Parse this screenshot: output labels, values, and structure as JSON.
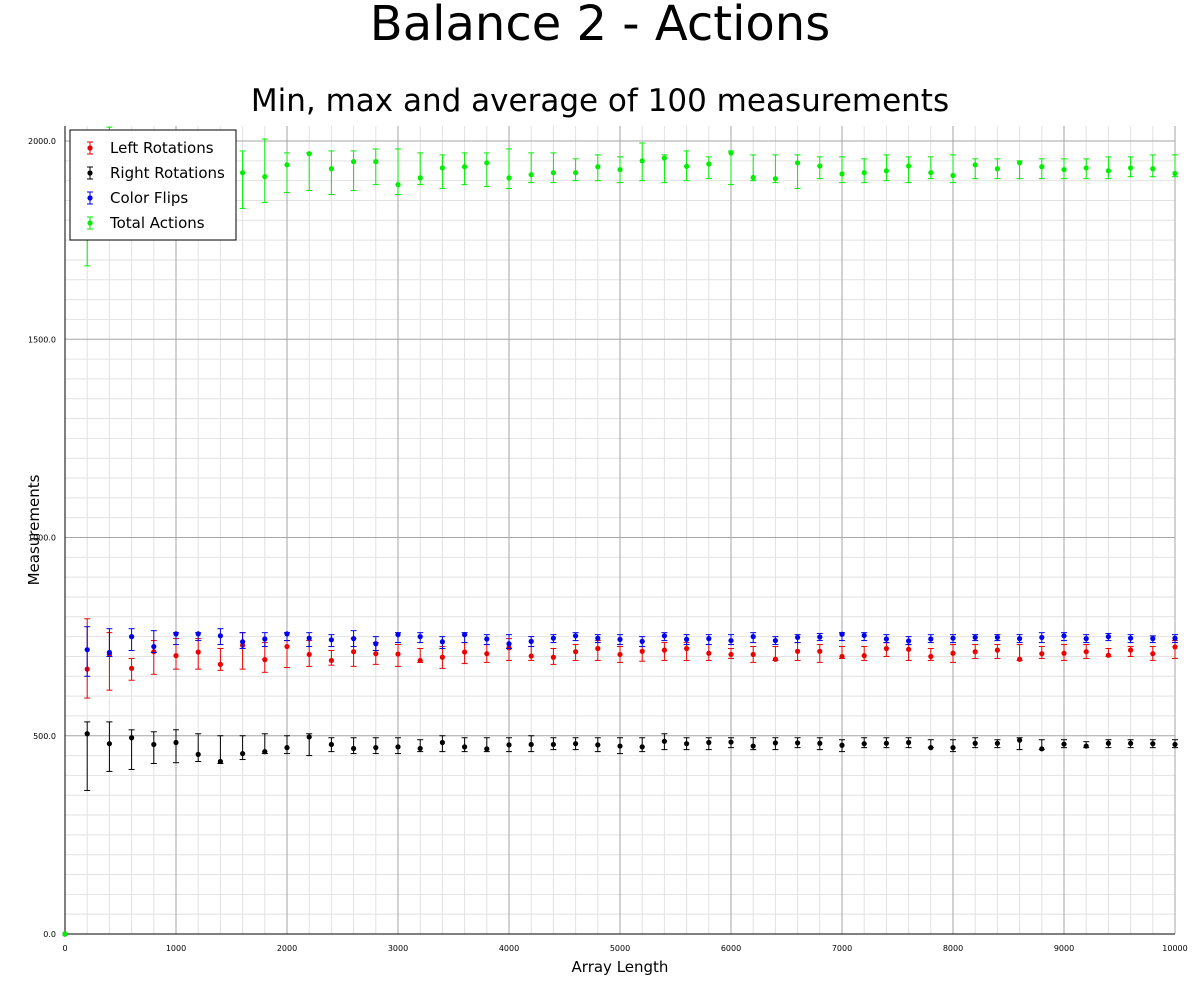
{
  "chart_data": {
    "type": "scatter",
    "title": "Balance 2 - Actions",
    "subtitle": "Min, max and average of 100 measurements",
    "xlabel": "Array Length",
    "ylabel": "Measurements",
    "xlim": [
      0,
      10000
    ],
    "ylim": [
      0,
      2000
    ],
    "xticks": [
      "0",
      "1000",
      "2000",
      "3000",
      "4000",
      "5000",
      "6000",
      "7000",
      "8000",
      "9000",
      "10000"
    ],
    "yticks": [
      "0.0",
      "500.0",
      "1000.0",
      "1500.0",
      "2000.0"
    ],
    "grid": true,
    "legend_position": "top-left",
    "x": [
      0,
      200,
      400,
      600,
      800,
      1000,
      1200,
      1400,
      1600,
      1800,
      2000,
      2200,
      2400,
      2600,
      2800,
      3000,
      3200,
      3400,
      3600,
      3800,
      4000,
      4200,
      4400,
      4600,
      4800,
      5000,
      5200,
      5400,
      5600,
      5800,
      6000,
      6200,
      6400,
      6600,
      6800,
      7000,
      7200,
      7400,
      7600,
      7800,
      8000,
      8200,
      8400,
      8600,
      8800,
      9000,
      9200,
      9400,
      9600,
      9800,
      10000
    ],
    "series": [
      {
        "name": "Left Rotations",
        "color": "#ee0000",
        "avg": [
          0,
          668,
          705,
          670,
          712,
          702,
          711,
          680,
          728,
          692,
          725,
          705,
          690,
          712,
          707,
          706,
          690,
          698,
          711,
          707,
          722,
          701,
          698,
          712,
          720,
          705,
          713,
          716,
          720,
          708,
          705,
          705,
          693,
          713,
          713,
          700,
          702,
          720,
          718,
          700,
          708,
          712,
          716,
          693,
          707,
          708,
          712,
          703,
          716,
          707,
          724
        ],
        "min": [
          0,
          595,
          615,
          640,
          655,
          668,
          668,
          665,
          668,
          660,
          672,
          675,
          678,
          675,
          680,
          675,
          685,
          670,
          682,
          685,
          690,
          690,
          680,
          690,
          690,
          685,
          688,
          690,
          690,
          690,
          695,
          685,
          690,
          690,
          685,
          695,
          690,
          700,
          690,
          690,
          685,
          695,
          695,
          690,
          695,
          690,
          695,
          700,
          700,
          690,
          695
        ],
        "max": [
          0,
          795,
          760,
          695,
          740,
          745,
          745,
          720,
          760,
          735,
          740,
          740,
          715,
          745,
          735,
          730,
          720,
          725,
          735,
          730,
          745,
          725,
          720,
          730,
          740,
          725,
          725,
          735,
          735,
          730,
          720,
          725,
          725,
          735,
          730,
          725,
          725,
          735,
          730,
          720,
          730,
          730,
          730,
          730,
          725,
          730,
          730,
          720,
          725,
          725,
          740
        ]
      },
      {
        "name": "Right Rotations",
        "color": "#000000",
        "avg": [
          0,
          505,
          480,
          495,
          478,
          483,
          453,
          435,
          455,
          460,
          470,
          497,
          478,
          468,
          470,
          472,
          468,
          483,
          472,
          467,
          477,
          478,
          478,
          480,
          477,
          474,
          472,
          486,
          480,
          483,
          484,
          474,
          482,
          482,
          481,
          476,
          480,
          481,
          483,
          470,
          470,
          481,
          481,
          489,
          467,
          479,
          474,
          481,
          481,
          480,
          478
        ],
        "min": [
          0,
          362,
          410,
          415,
          430,
          432,
          435,
          430,
          440,
          455,
          455,
          450,
          460,
          455,
          455,
          455,
          460,
          460,
          460,
          460,
          460,
          460,
          465,
          465,
          460,
          455,
          460,
          465,
          465,
          465,
          470,
          465,
          465,
          470,
          465,
          460,
          470,
          470,
          470,
          470,
          460,
          470,
          470,
          465,
          465,
          470,
          470,
          470,
          470,
          470,
          470
        ],
        "max": [
          0,
          535,
          535,
          515,
          510,
          515,
          505,
          500,
          500,
          505,
          500,
          505,
          495,
          495,
          495,
          495,
          490,
          500,
          495,
          495,
          495,
          500,
          495,
          495,
          495,
          495,
          495,
          505,
          495,
          495,
          495,
          495,
          495,
          495,
          495,
          490,
          495,
          495,
          495,
          490,
          490,
          495,
          490,
          495,
          490,
          490,
          485,
          490,
          490,
          490,
          490
        ]
      },
      {
        "name": "Color Flips",
        "color": "#0000ee",
        "avg": [
          0,
          717,
          710,
          750,
          725,
          757,
          757,
          752,
          737,
          744,
          757,
          746,
          742,
          745,
          732,
          755,
          750,
          737,
          755,
          744,
          732,
          738,
          746,
          752,
          746,
          743,
          738,
          752,
          743,
          745,
          740,
          750,
          740,
          748,
          749,
          756,
          753,
          744,
          739,
          744,
          746,
          748,
          748,
          745,
          748,
          752,
          745,
          750,
          746,
          745,
          746
        ],
        "min": [
          0,
          650,
          700,
          715,
          710,
          730,
          740,
          730,
          720,
          725,
          740,
          725,
          725,
          725,
          715,
          735,
          735,
          720,
          735,
          730,
          720,
          725,
          735,
          740,
          735,
          730,
          725,
          740,
          730,
          730,
          730,
          735,
          730,
          735,
          740,
          740,
          740,
          735,
          730,
          735,
          735,
          740,
          740,
          735,
          735,
          740,
          735,
          740,
          735,
          735,
          735
        ],
        "max": [
          0,
          775,
          770,
          770,
          765,
          760,
          760,
          770,
          760,
          760,
          760,
          760,
          755,
          765,
          750,
          760,
          760,
          750,
          760,
          755,
          755,
          750,
          755,
          760,
          755,
          755,
          750,
          760,
          755,
          755,
          755,
          760,
          750,
          755,
          758,
          760,
          760,
          755,
          750,
          755,
          755,
          755,
          755,
          755,
          760,
          760,
          755,
          758,
          755,
          752,
          755
        ]
      },
      {
        "name": "Total Actions",
        "color": "#00ee00",
        "avg": [
          0,
          1867,
          1895,
          1905,
          1898,
          1910,
          1920,
          1910,
          1920,
          1910,
          1940,
          1968,
          1930,
          1948,
          1948,
          1890,
          1907,
          1932,
          1935,
          1945,
          1907,
          1915,
          1920,
          1920,
          1935,
          1928,
          1950,
          1957,
          1936,
          1942,
          1970,
          1908,
          1905,
          1945,
          1937,
          1917,
          1920,
          1925,
          1937,
          1920,
          1913,
          1940,
          1930,
          1945,
          1935,
          1928,
          1932,
          1925,
          1932,
          1930,
          1918
        ],
        "min": [
          0,
          1685,
          1775,
          1815,
          1810,
          1830,
          1840,
          1840,
          1830,
          1845,
          1870,
          1875,
          1865,
          1875,
          1890,
          1865,
          1890,
          1880,
          1890,
          1885,
          1880,
          1895,
          1895,
          1900,
          1900,
          1895,
          1900,
          1895,
          1900,
          1905,
          1890,
          1900,
          1895,
          1880,
          1905,
          1895,
          1895,
          1900,
          1895,
          1905,
          1895,
          1905,
          1905,
          1905,
          1905,
          1905,
          1905,
          1905,
          1910,
          1910,
          1910
        ],
        "max": [
          0,
          1985,
          2035,
          1990,
          1990,
          1985,
          1990,
          1990,
          1975,
          2005,
          1970,
          1970,
          1975,
          1975,
          1980,
          1980,
          1970,
          1965,
          1970,
          1970,
          1980,
          1970,
          1970,
          1955,
          1965,
          1960,
          1995,
          1965,
          1975,
          1960,
          1975,
          1965,
          1965,
          1965,
          1960,
          1960,
          1955,
          1965,
          1960,
          1960,
          1965,
          1955,
          1955,
          1950,
          1955,
          1955,
          1955,
          1960,
          1960,
          1965,
          1965
        ]
      }
    ]
  }
}
